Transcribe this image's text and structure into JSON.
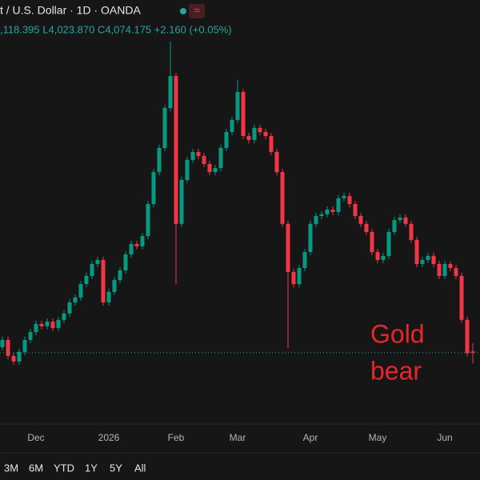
{
  "chart_data": {
    "type": "candlestick",
    "title": "t / U.S. Dollar · 1D · OANDA",
    "ohlc_line": ",118.395 L4,023.870 C4,074.175 +2.160 (+0.05%)",
    "annotation": [
      "Gold",
      "bear"
    ],
    "range_buttons": [
      "3M",
      "6M",
      "YTD",
      "1Y",
      "5Y",
      "All"
    ],
    "up_color": "#089981",
    "down_color": "#f23645",
    "annotation_color": "#e8262a",
    "ylim": [
      3740,
      5540
    ],
    "categories": [
      null,
      null,
      null,
      null,
      null,
      null,
      "Dec",
      null,
      null,
      null,
      null,
      null,
      null,
      null,
      null,
      null,
      null,
      null,
      null,
      "2026",
      null,
      null,
      null,
      null,
      null,
      null,
      null,
      null,
      null,
      null,
      null,
      "Feb",
      null,
      null,
      null,
      null,
      null,
      null,
      null,
      null,
      null,
      null,
      "Mar",
      null,
      null,
      null,
      null,
      null,
      null,
      null,
      null,
      null,
      null,
      null,
      null,
      "Apr",
      null,
      null,
      null,
      null,
      null,
      null,
      null,
      null,
      null,
      null,
      null,
      "May",
      null,
      null,
      null,
      null,
      null,
      null,
      null,
      null,
      null,
      null,
      null,
      "Jun",
      null,
      null,
      null,
      null,
      null
    ],
    "open": [
      4100,
      4134,
      4059,
      4033,
      4078,
      4134,
      4171,
      4209,
      4198,
      4220,
      4190,
      4228,
      4258,
      4310,
      4333,
      4396,
      4434,
      4490,
      4509,
      4310,
      4359,
      4415,
      4460,
      4535,
      4584,
      4573,
      4621,
      4771,
      4921,
      5034,
      5221,
      5371,
      4678,
      4884,
      4978,
      5015,
      4996,
      4959,
      4921,
      4940,
      5034,
      5109,
      5165,
      5296,
      5090,
      5071,
      5128,
      5109,
      5090,
      5015,
      4921,
      4678,
      4453,
      4396,
      4471,
      4546,
      4678,
      4715,
      4723,
      4745,
      4734,
      4798,
      4809,
      4771,
      4715,
      4678,
      4640,
      4546,
      4509,
      4528,
      4640,
      4696,
      4708,
      4678,
      4603,
      4490,
      4509,
      4528,
      4490,
      4434,
      4490,
      4471,
      4434,
      4228,
      4080
    ],
    "high": [
      4149,
      4149,
      4074,
      4093,
      4149,
      4186,
      4224,
      4224,
      4235,
      4235,
      4243,
      4273,
      4325,
      4348,
      4411,
      4449,
      4505,
      4524,
      4524,
      4374,
      4430,
      4475,
      4550,
      4599,
      4599,
      4636,
      4786,
      4936,
      5049,
      5236,
      5533,
      5386,
      4899,
      4993,
      5030,
      5030,
      5011,
      4974,
      4955,
      5049,
      5124,
      5180,
      5352,
      5311,
      5105,
      5143,
      5143,
      5124,
      5105,
      5030,
      4936,
      4693,
      4468,
      4486,
      4561,
      4693,
      4730,
      4738,
      4760,
      4760,
      4813,
      4824,
      4824,
      4786,
      4730,
      4693,
      4655,
      4561,
      4543,
      4655,
      4711,
      4723,
      4723,
      4693,
      4618,
      4524,
      4543,
      4543,
      4505,
      4505,
      4505,
      4486,
      4449,
      4243,
      4118.395
    ],
    "low": [
      4085,
      4044,
      4018,
      4018,
      4063,
      4119,
      4156,
      4183,
      4183,
      4175,
      4175,
      4213,
      4243,
      4295,
      4318,
      4381,
      4419,
      4475,
      4295,
      4295,
      4344,
      4400,
      4445,
      4520,
      4558,
      4558,
      4606,
      4756,
      4906,
      5019,
      5206,
      4396,
      4663,
      4869,
      4963,
      4981,
      4944,
      4906,
      4906,
      4925,
      5019,
      5094,
      5150,
      5075,
      5056,
      5056,
      5094,
      5075,
      5000,
      4906,
      4663,
      4096,
      4381,
      4381,
      4456,
      4531,
      4663,
      4700,
      4708,
      4719,
      4719,
      4783,
      4756,
      4700,
      4663,
      4625,
      4531,
      4494,
      4494,
      4513,
      4625,
      4681,
      4663,
      4588,
      4475,
      4475,
      4494,
      4475,
      4419,
      4419,
      4456,
      4419,
      4213,
      4057,
      4023.87
    ],
    "close": [
      4134,
      4059,
      4033,
      4078,
      4134,
      4171,
      4209,
      4198,
      4220,
      4190,
      4228,
      4258,
      4310,
      4333,
      4396,
      4434,
      4490,
      4509,
      4310,
      4359,
      4415,
      4460,
      4535,
      4584,
      4573,
      4621,
      4771,
      4921,
      5034,
      5221,
      5371,
      4678,
      4884,
      4978,
      5015,
      4996,
      4959,
      4921,
      4940,
      5034,
      5109,
      5165,
      5296,
      5090,
      5071,
      5128,
      5109,
      5090,
      5015,
      4921,
      4678,
      4453,
      4396,
      4471,
      4546,
      4678,
      4715,
      4723,
      4745,
      4734,
      4798,
      4809,
      4771,
      4715,
      4678,
      4640,
      4546,
      4509,
      4528,
      4640,
      4696,
      4708,
      4678,
      4603,
      4490,
      4509,
      4528,
      4490,
      4434,
      4490,
      4471,
      4434,
      4228,
      4072.015,
      4074.175
    ]
  }
}
